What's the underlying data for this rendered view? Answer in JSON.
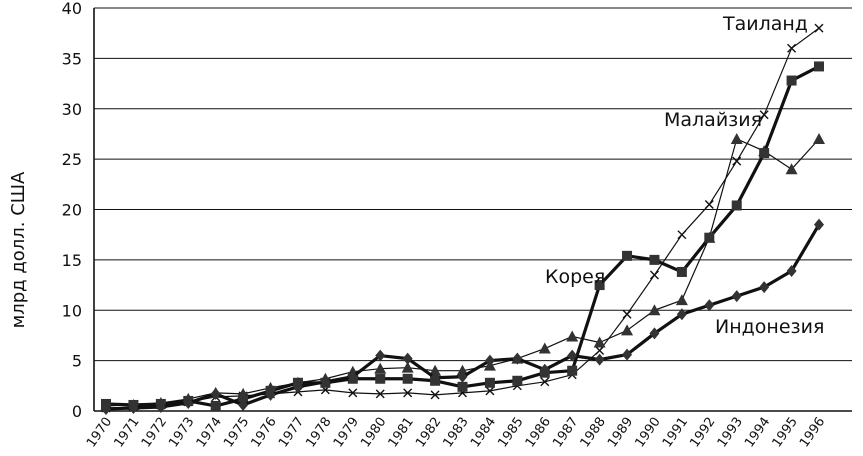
{
  "chart_data": {
    "type": "line",
    "ylabel": "млрд долл. США",
    "ylim": [
      0,
      40
    ],
    "yticks": [
      "0",
      "5",
      "10",
      "15",
      "20",
      "25",
      "30",
      "35",
      "40"
    ],
    "categories": [
      "1970",
      "1971",
      "1972",
      "1973",
      "1974",
      "1975",
      "1976",
      "1977",
      "1978",
      "1979",
      "1980",
      "1981",
      "1982",
      "1983",
      "1984",
      "1985",
      "1986",
      "1987",
      "1988",
      "1989",
      "1990",
      "1991",
      "1992",
      "1993",
      "1994",
      "1995",
      "1996"
    ],
    "grid": true,
    "series": [
      {
        "name": "Таиланд",
        "marker": "x",
        "line": "thin",
        "values": [
          0.3,
          0.4,
          0.6,
          0.9,
          1.4,
          1.5,
          1.7,
          1.9,
          2.1,
          1.8,
          1.7,
          1.8,
          1.6,
          1.8,
          2.0,
          2.5,
          2.9,
          3.6,
          6.0,
          9.6,
          13.5,
          17.5,
          20.5,
          24.8,
          29.4,
          36.0,
          38.0
        ]
      },
      {
        "name": "Малайзия",
        "marker": "triangle",
        "line": "thin",
        "values": [
          0.5,
          0.6,
          0.8,
          1.2,
          1.8,
          1.7,
          2.3,
          2.8,
          3.2,
          3.9,
          4.2,
          4.3,
          4.0,
          4.0,
          4.5,
          5.2,
          6.2,
          7.4,
          6.8,
          8.0,
          10.0,
          11.0,
          17.2,
          27.0,
          25.8,
          24.0,
          27.0
        ]
      },
      {
        "name": "Корея",
        "marker": "square",
        "line": "bold",
        "values": [
          0.7,
          0.6,
          0.7,
          1.0,
          0.5,
          1.2,
          2.0,
          2.8,
          2.8,
          3.2,
          3.2,
          3.2,
          3.0,
          2.4,
          2.8,
          3.0,
          3.8,
          4.0,
          12.5,
          15.4,
          15.0,
          13.8,
          17.2,
          20.4,
          25.6,
          32.8,
          34.2
        ]
      },
      {
        "name": "Индонезия",
        "marker": "diamond",
        "line": "bold",
        "values": [
          0.2,
          0.3,
          0.4,
          0.8,
          1.7,
          0.6,
          1.6,
          2.4,
          2.9,
          3.4,
          5.5,
          5.2,
          3.3,
          3.4,
          5.0,
          5.2,
          4.1,
          5.5,
          5.1,
          5.6,
          7.7,
          9.6,
          10.5,
          11.4,
          12.3,
          13.9,
          18.5
        ]
      }
    ]
  }
}
